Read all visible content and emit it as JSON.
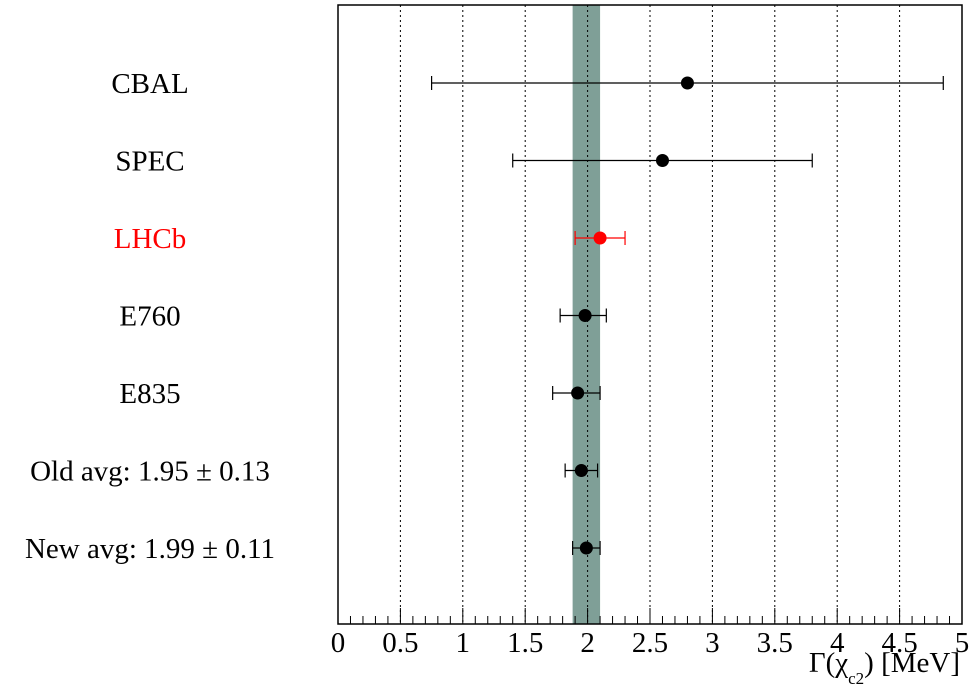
{
  "chart_data": {
    "type": "scatter",
    "title": "",
    "x_axis": {
      "label_parts": [
        "Γ(χ",
        "c2",
        ") [MeV]"
      ],
      "range": [
        0,
        5
      ],
      "ticks": [
        "0",
        "0.5",
        "1",
        "1.5",
        "2",
        "2.5",
        "3",
        "3.5",
        "4",
        "4.5",
        "5"
      ],
      "grid": "dotted vertical at every 0.5"
    },
    "band": {
      "low": 1.88,
      "high": 2.1,
      "color": "#7f9f97"
    },
    "series": [
      {
        "label": "CBAL",
        "value": 2.8,
        "err_low": 0.75,
        "err_high": 4.85,
        "color": "#000000"
      },
      {
        "label": "SPEC",
        "value": 2.6,
        "err_low": 1.4,
        "err_high": 3.8,
        "color": "#000000"
      },
      {
        "label": "LHCb",
        "value": 2.1,
        "err_low": 1.9,
        "err_high": 2.3,
        "color": "#ff0000"
      },
      {
        "label": "E760",
        "value": 1.98,
        "err_low": 1.78,
        "err_high": 2.15,
        "color": "#000000"
      },
      {
        "label": "E835",
        "value": 1.92,
        "err_low": 1.72,
        "err_high": 2.1,
        "color": "#000000"
      },
      {
        "label": "Old avg: 1.95 ± 0.13",
        "value": 1.95,
        "err_low": 1.82,
        "err_high": 2.08,
        "color": "#000000"
      },
      {
        "label": "New avg: 1.99 ± 0.11",
        "value": 1.99,
        "err_low": 1.88,
        "err_high": 2.1,
        "color": "#000000"
      }
    ]
  }
}
